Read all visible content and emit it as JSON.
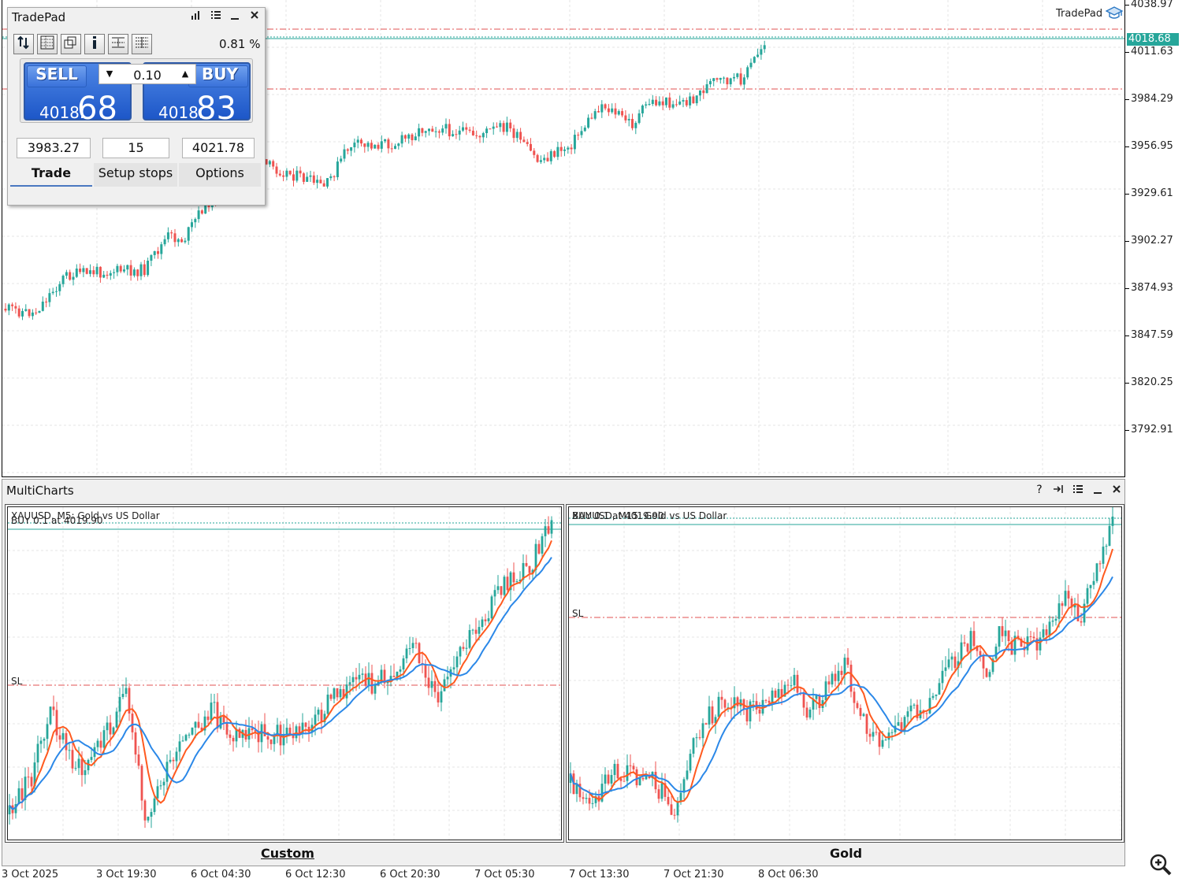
{
  "brand": {
    "label": "TradePad"
  },
  "price_scale": {
    "labels": [
      "4038.97",
      "4011.63",
      "3984.29",
      "3956.95",
      "3929.61",
      "3902.27",
      "3874.93",
      "3847.59",
      "3820.25",
      "3792.91"
    ],
    "current_price": "4018.68"
  },
  "tradepad": {
    "title": "TradePad",
    "percent": "0.81",
    "percent_unit": "%",
    "sell": {
      "label": "SELL",
      "price_small": "4018.",
      "price_large": "68"
    },
    "buy": {
      "label": "BUY",
      "price_small": "4018.",
      "price_large": "83"
    },
    "lot": "0.10",
    "fields": [
      "3983.27",
      "15",
      "4021.78"
    ],
    "tabs": [
      "Trade",
      "Setup stops",
      "Options"
    ]
  },
  "multicharts": {
    "title": "MultiCharts",
    "left_chart": {
      "title": "XAUUSD, M5:  Gold vs US Dollar",
      "order_line": "BUY 0.1 at 4019.90",
      "sl_label": "SL",
      "tab_label": "Custom"
    },
    "right_chart": {
      "title": "XAUUSD, M15:  Gold vs US Dollar",
      "order_line": "BUY 0.1 at 4019.90",
      "sl_label": "SL",
      "tab_label": "Gold"
    }
  },
  "time_axis": [
    "3 Oct 2025",
    "3 Oct 19:30",
    "6 Oct 04:30",
    "6 Oct 12:30",
    "6 Oct 20:30",
    "7 Oct 05:30",
    "7 Oct 13:30",
    "7 Oct 21:30",
    "8 Oct 06:30"
  ],
  "colors": {
    "bull": "#26a69a",
    "bear": "#ef5350",
    "ma_fast": "#ff5a1f",
    "ma_slow": "#2b88e8",
    "sl_line": "#e05050",
    "order_line": "#26a69a"
  }
}
